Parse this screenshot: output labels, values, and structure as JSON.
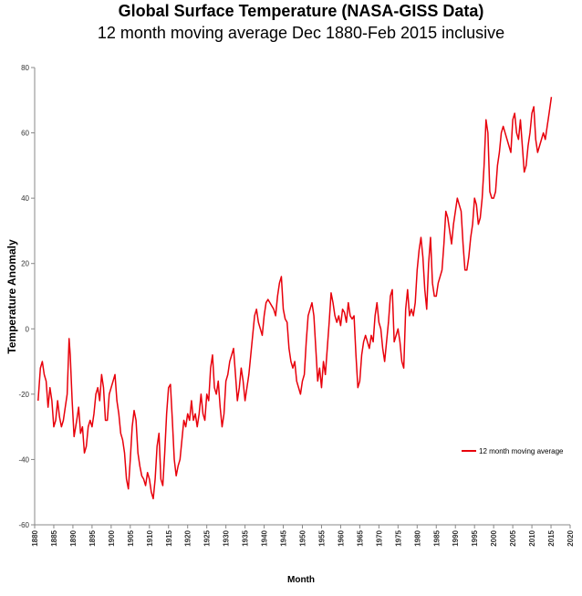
{
  "chart_data": {
    "type": "line",
    "title": "Global Surface Temperature (NASA-GISS Data)",
    "subtitle": "12 month moving average Dec 1880-Feb 2015 inclusive",
    "x_label": "Month",
    "y_label": "Temperature Anomaly",
    "xlim": [
      1880,
      2020
    ],
    "xticks": [
      1880,
      1885,
      1890,
      1895,
      1900,
      1905,
      1910,
      1915,
      1920,
      1925,
      1930,
      1935,
      1940,
      1945,
      1950,
      1955,
      1960,
      1965,
      1970,
      1975,
      1980,
      1985,
      1990,
      1995,
      2000,
      2005,
      2010,
      2015,
      2020
    ],
    "ylim": [
      -60,
      80
    ],
    "yticks": [
      -60,
      -40,
      -20,
      0,
      20,
      40,
      60,
      80
    ],
    "legend": "right",
    "series": [
      {
        "name": "12 month moving average",
        "color": "#e8000b",
        "x": [
          1880.9,
          1881.5,
          1882,
          1882.5,
          1883,
          1883.5,
          1884,
          1884.5,
          1885,
          1885.5,
          1886,
          1886.5,
          1887,
          1887.5,
          1888,
          1888.5,
          1889,
          1889.3,
          1889.8,
          1890.3,
          1891,
          1891.5,
          1892,
          1892.5,
          1893,
          1893.5,
          1894,
          1894.5,
          1895,
          1895.5,
          1896,
          1896.5,
          1897,
          1897.5,
          1898,
          1898.5,
          1899,
          1899.5,
          1900,
          1900.5,
          1901,
          1901.5,
          1902,
          1902.5,
          1903,
          1903.5,
          1904,
          1904.5,
          1905,
          1905.5,
          1906,
          1906.5,
          1907,
          1907.5,
          1908,
          1908.5,
          1909,
          1909.5,
          1910,
          1910.5,
          1911,
          1911.5,
          1912,
          1912.5,
          1913,
          1913.5,
          1914,
          1914.5,
          1915,
          1915.5,
          1916,
          1916.5,
          1917,
          1917.5,
          1918,
          1918.5,
          1919,
          1919.5,
          1920,
          1920.5,
          1921,
          1921.5,
          1922,
          1922.5,
          1923,
          1923.5,
          1924,
          1924.5,
          1925,
          1925.5,
          1926,
          1926.5,
          1927,
          1927.5,
          1928,
          1928.5,
          1929,
          1929.5,
          1930,
          1930.5,
          1931,
          1931.5,
          1932,
          1932.5,
          1933,
          1933.5,
          1934,
          1934.5,
          1935,
          1935.5,
          1936,
          1936.5,
          1937,
          1937.5,
          1938,
          1938.5,
          1939,
          1939.5,
          1940,
          1940.5,
          1941,
          1941.5,
          1942,
          1942.5,
          1943,
          1943.5,
          1944,
          1944.5,
          1945,
          1945.5,
          1946,
          1946.5,
          1947,
          1947.5,
          1948,
          1948.5,
          1949,
          1949.5,
          1950,
          1950.5,
          1951,
          1951.5,
          1952,
          1952.5,
          1953,
          1953.5,
          1954,
          1954.5,
          1955,
          1955.5,
          1956,
          1956.5,
          1957,
          1957.5,
          1958,
          1958.5,
          1959,
          1959.5,
          1960,
          1960.5,
          1961,
          1961.5,
          1962,
          1962.5,
          1963,
          1963.5,
          1964,
          1964.5,
          1965,
          1965.5,
          1966,
          1966.5,
          1967,
          1967.5,
          1968,
          1968.5,
          1969,
          1969.5,
          1970,
          1970.5,
          1971,
          1971.5,
          1972,
          1972.5,
          1973,
          1973.5,
          1974,
          1974.5,
          1975,
          1975.5,
          1976,
          1976.5,
          1977,
          1977.5,
          1978,
          1978.5,
          1979,
          1979.5,
          1980,
          1980.5,
          1981,
          1981.5,
          1982,
          1982.5,
          1983,
          1983.5,
          1984,
          1984.5,
          1985,
          1985.5,
          1986,
          1986.5,
          1987,
          1987.5,
          1988,
          1988.5,
          1989,
          1989.5,
          1990,
          1990.5,
          1991,
          1991.5,
          1992,
          1992.5,
          1993,
          1993.5,
          1994,
          1994.5,
          1995,
          1995.5,
          1996,
          1996.5,
          1997,
          1997.5,
          1998,
          1998.5,
          1999,
          1999.5,
          2000,
          2000.5,
          2001,
          2001.5,
          2002,
          2002.5,
          2003,
          2003.5,
          2004,
          2004.5,
          2005,
          2005.5,
          2006,
          2006.5,
          2007,
          2007.5,
          2008,
          2008.5,
          2009,
          2009.5,
          2010,
          2010.5,
          2011,
          2011.5,
          2012,
          2012.5,
          2013,
          2013.5,
          2014,
          2014.5,
          2015.1
        ],
        "values": [
          -22,
          -12,
          -10,
          -14,
          -16,
          -24,
          -18,
          -22,
          -30,
          -28,
          -22,
          -27,
          -30,
          -28,
          -24,
          -20,
          -3,
          -8,
          -22,
          -33,
          -28,
          -24,
          -32,
          -30,
          -38,
          -36,
          -30,
          -28,
          -30,
          -26,
          -20,
          -18,
          -22,
          -14,
          -18,
          -28,
          -28,
          -20,
          -18,
          -16,
          -14,
          -22,
          -26,
          -32,
          -34,
          -38,
          -46,
          -49,
          -40,
          -30,
          -25,
          -28,
          -38,
          -42,
          -45,
          -46,
          -48,
          -44,
          -46,
          -50,
          -52,
          -46,
          -36,
          -32,
          -46,
          -48,
          -38,
          -26,
          -18,
          -17,
          -28,
          -40,
          -45,
          -42,
          -40,
          -34,
          -28,
          -30,
          -26,
          -28,
          -22,
          -28,
          -26,
          -30,
          -26,
          -20,
          -26,
          -28,
          -20,
          -22,
          -12,
          -8,
          -18,
          -20,
          -16,
          -24,
          -30,
          -26,
          -16,
          -14,
          -10,
          -8,
          -6,
          -14,
          -22,
          -18,
          -12,
          -16,
          -22,
          -18,
          -14,
          -8,
          -2,
          4,
          6,
          2,
          0,
          -2,
          4,
          8,
          9,
          8,
          7,
          6,
          4,
          10,
          14,
          16,
          6,
          3,
          2,
          -6,
          -10,
          -12,
          -10,
          -16,
          -18,
          -20,
          -16,
          -14,
          -4,
          4,
          6,
          8,
          4,
          -6,
          -16,
          -12,
          -18,
          -10,
          -14,
          -6,
          2,
          11,
          8,
          4,
          2,
          4,
          1,
          6,
          5,
          2,
          8,
          4,
          3,
          4,
          -8,
          -18,
          -16,
          -8,
          -4,
          -2,
          -4,
          -6,
          -2,
          -4,
          4,
          8,
          2,
          0,
          -6,
          -10,
          -4,
          2,
          10,
          12,
          -4,
          -2,
          0,
          -4,
          -10,
          -12,
          6,
          12,
          4,
          6,
          4,
          8,
          18,
          24,
          28,
          22,
          12,
          6,
          20,
          28,
          14,
          10,
          10,
          14,
          16,
          18,
          26,
          36,
          34,
          30,
          26,
          32,
          36,
          40,
          38,
          36,
          26,
          18,
          18,
          22,
          28,
          32,
          40,
          38,
          32,
          34,
          40,
          50,
          64,
          60,
          42,
          40,
          40,
          42,
          50,
          54,
          60,
          62,
          60,
          58,
          56,
          54,
          64,
          66,
          60,
          58,
          64,
          56,
          48,
          50,
          56,
          60,
          66,
          68,
          58,
          54,
          56,
          58,
          60,
          58,
          62,
          66,
          71
        ]
      }
    ]
  }
}
